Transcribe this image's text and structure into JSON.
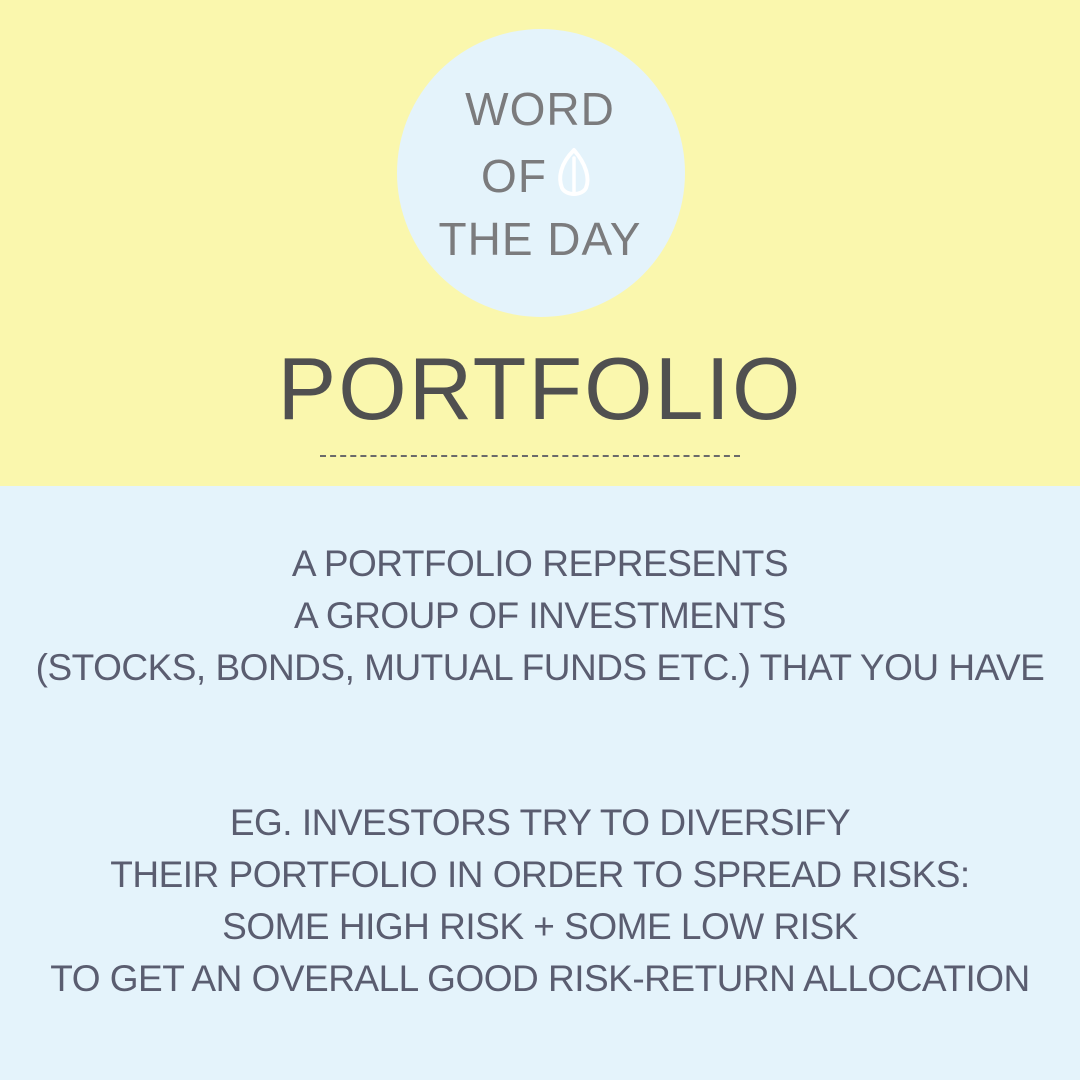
{
  "header": {
    "badge": {
      "line1": "WORD",
      "line2": "OF",
      "line3": "THE DAY",
      "icon": "leaf-icon"
    },
    "title": "PORTFOLIO"
  },
  "definition": {
    "lines": [
      "A PORTFOLIO REPRESENTS",
      "A GROUP OF INVESTMENTS",
      "(STOCKS, BONDS, MUTUAL FUNDS ETC.) THAT YOU HAVE"
    ]
  },
  "example": {
    "lines": [
      "EG. INVESTORS TRY TO DIVERSIFY",
      "THEIR PORTFOLIO IN ORDER TO SPREAD RISKS:",
      "SOME HIGH RISK + SOME LOW RISK",
      "TO GET AN OVERALL GOOD RISK-RETURN ALLOCATION"
    ]
  },
  "colors": {
    "top_background": "#faf7ad",
    "bottom_background": "#e4f3fb",
    "title_text": "#505050",
    "body_text": "#5a5d70"
  }
}
